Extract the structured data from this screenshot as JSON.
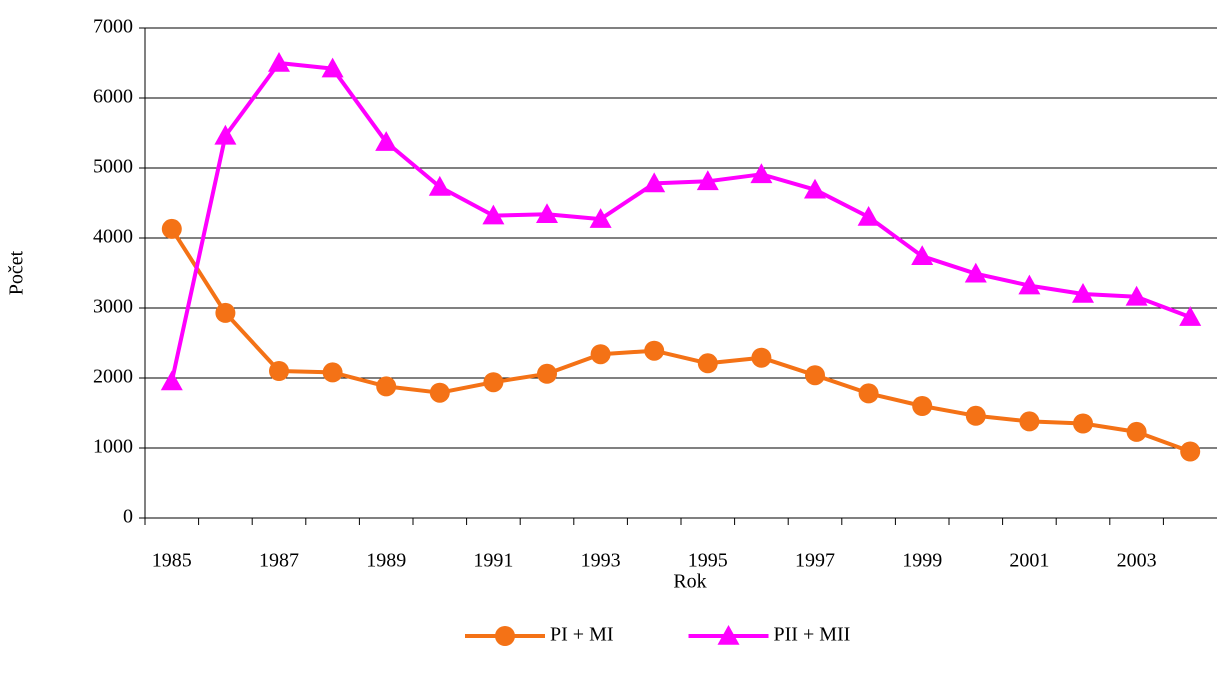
{
  "chart_data": {
    "type": "line",
    "x_label": "Rok",
    "y_label": "Počet",
    "categories": [
      "1985",
      null,
      "1987",
      null,
      "1989",
      null,
      "1991",
      null,
      "1993",
      null,
      "1995",
      null,
      "1997",
      null,
      "1999",
      null,
      "2001",
      null,
      "2003",
      null
    ],
    "series": [
      {
        "name": "PI + MI",
        "color": "#f47216",
        "marker": "circle",
        "values": [
          4130,
          2930,
          2100,
          2080,
          1880,
          1790,
          1940,
          2060,
          2340,
          2390,
          2210,
          2290,
          2040,
          1780,
          1600,
          1460,
          1380,
          1350,
          1230,
          950
        ]
      },
      {
        "name": "PII + MII",
        "color": "#ff00ff",
        "marker": "triangle",
        "values": [
          1950,
          5460,
          6500,
          6420,
          5370,
          4730,
          4320,
          4340,
          4270,
          4780,
          4810,
          4910,
          4690,
          4300,
          3740,
          3490,
          3320,
          3200,
          3160,
          2870
        ]
      }
    ],
    "ylim": [
      0,
      7000
    ],
    "yticks": [
      0,
      1000,
      2000,
      3000,
      4000,
      5000,
      6000,
      7000
    ],
    "grid": true,
    "legend": "bottom"
  }
}
